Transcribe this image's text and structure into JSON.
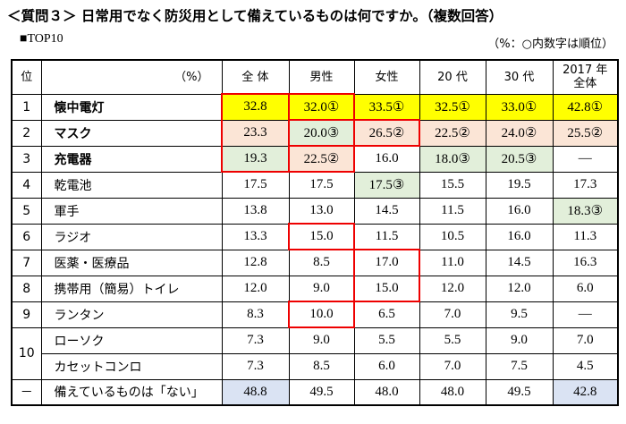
{
  "header": {
    "title": "＜質問３＞ 日常用でなく防災用として備えているものは何ですか。（複数回答）",
    "subtitle": "■TOP10",
    "note": "（%：○内数字は順位）"
  },
  "table": {
    "columns": [
      "位",
      "（%）",
      "全 体",
      "男性",
      "女性",
      "20 代",
      "30 代",
      "2017 年\n全体"
    ],
    "rows": [
      {
        "rank": "1",
        "label": "懐中電灯",
        "cells": [
          "32.8",
          "32.0①",
          "33.5①",
          "32.5①",
          "33.0①",
          "42.8①"
        ]
      },
      {
        "rank": "2",
        "label": "マスク",
        "cells": [
          "23.3",
          "20.0③",
          "26.5②",
          "22.5②",
          "24.0②",
          "25.5②"
        ]
      },
      {
        "rank": "3",
        "label": "充電器",
        "cells": [
          "19.3",
          "22.5②",
          "16.0",
          "18.0③",
          "20.5③",
          "—"
        ]
      },
      {
        "rank": "4",
        "label": "乾電池",
        "cells": [
          "17.5",
          "17.5",
          "17.5③",
          "15.5",
          "19.5",
          "17.3"
        ]
      },
      {
        "rank": "5",
        "label": "軍手",
        "cells": [
          "13.8",
          "13.0",
          "14.5",
          "11.5",
          "16.0",
          "18.3③"
        ]
      },
      {
        "rank": "6",
        "label": "ラジオ",
        "cells": [
          "13.3",
          "15.0",
          "11.5",
          "10.5",
          "16.0",
          "11.3"
        ]
      },
      {
        "rank": "7",
        "label": "医薬・医療品",
        "cells": [
          "12.8",
          "8.5",
          "17.0",
          "11.0",
          "14.5",
          "16.3"
        ]
      },
      {
        "rank": "8",
        "label": "携帯用（簡易）トイレ",
        "cells": [
          "12.0",
          "9.0",
          "15.0",
          "12.0",
          "12.0",
          "6.0"
        ]
      },
      {
        "rank": "9",
        "label": "ランタン",
        "cells": [
          "8.3",
          "10.0",
          "6.5",
          "7.0",
          "9.5",
          "—"
        ]
      },
      {
        "rank": "10",
        "label": "ローソク",
        "cells": [
          "7.3",
          "9.0",
          "5.5",
          "5.5",
          "9.0",
          "7.0"
        ]
      },
      {
        "label": "カセットコンロ",
        "cells": [
          "7.3",
          "8.5",
          "6.0",
          "7.0",
          "7.5",
          "4.5"
        ]
      },
      {
        "rank": "－",
        "label": "備えているものは「ない」",
        "cells": [
          "48.8",
          "49.5",
          "48.0",
          "48.0",
          "49.5",
          "42.8"
        ]
      }
    ]
  }
}
